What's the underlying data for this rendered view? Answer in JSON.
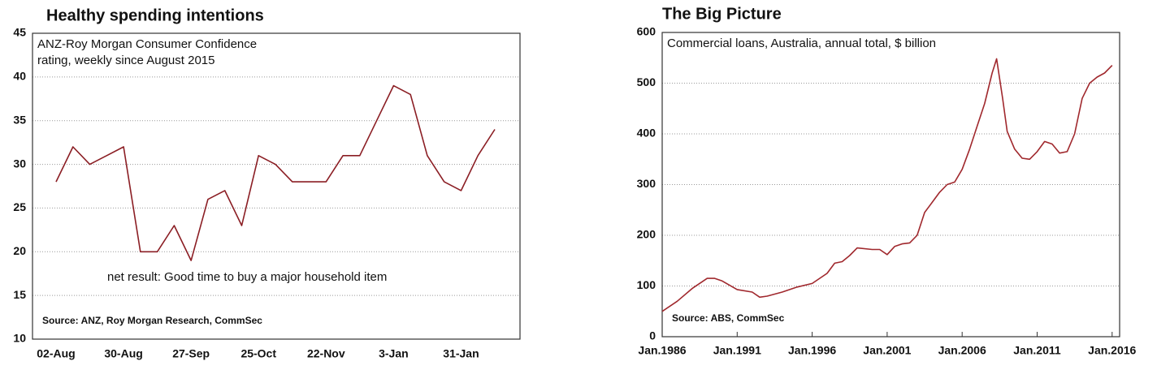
{
  "chart_data": [
    {
      "type": "line",
      "title": "Healthy spending intentions",
      "subtitle": [
        "ANZ-Roy Morgan Consumer Confidence",
        "rating, weekly since August 2015"
      ],
      "annotation": "net result: Good time to buy a major household item",
      "source": "Source: ANZ, Roy Morgan Research, CommSec",
      "categories": [
        "02-Aug",
        null,
        null,
        null,
        "30-Aug",
        null,
        null,
        null,
        "27-Sep",
        null,
        null,
        null,
        "25-Oct",
        null,
        null,
        null,
        "22-Nov",
        null,
        null,
        null,
        "3-Jan",
        null,
        null,
        null,
        "31-Jan",
        null,
        null
      ],
      "series": [
        {
          "color": "#8b1e24",
          "values": [
            28,
            32,
            30,
            31,
            32,
            20,
            20,
            23,
            19,
            26,
            27,
            23,
            31,
            30,
            28,
            28,
            28,
            31,
            31,
            35,
            39,
            38,
            31,
            28,
            27,
            31,
            34
          ]
        }
      ],
      "ylim": [
        10,
        45
      ],
      "yticks": [
        10,
        15,
        20,
        25,
        30,
        35,
        40,
        45
      ],
      "grid": true
    },
    {
      "type": "line",
      "title": "The Big Picture",
      "subtitle": [
        "Commercial loans, Australia, annual total, $ billion"
      ],
      "source": "Source: ABS, CommSec",
      "x": [
        1986,
        1987,
        1988,
        1989,
        1989.5,
        1990,
        1991,
        1992,
        1992.5,
        1993,
        1994,
        1995,
        1996,
        1997,
        1997.5,
        1998,
        1998.5,
        1999,
        2000,
        2000.5,
        2001,
        2001.5,
        2002,
        2002.5,
        2003,
        2003.5,
        2004,
        2004.5,
        2005,
        2005.5,
        2006,
        2006.5,
        2007,
        2007.5,
        2008,
        2008.3,
        2008.7,
        2009,
        2009.5,
        2010,
        2010.5,
        2011,
        2011.5,
        2012,
        2012.5,
        2013,
        2013.5,
        2014,
        2014.5,
        2015,
        2015.5,
        2016
      ],
      "series": [
        {
          "color": "#a0282d",
          "values": [
            50,
            70,
            95,
            115,
            115,
            110,
            93,
            88,
            78,
            80,
            88,
            98,
            105,
            125,
            145,
            148,
            160,
            175,
            172,
            172,
            162,
            178,
            183,
            185,
            200,
            245,
            265,
            285,
            300,
            305,
            330,
            370,
            415,
            460,
            520,
            548,
            470,
            405,
            370,
            352,
            350,
            365,
            385,
            380,
            362,
            365,
            400,
            470,
            500,
            512,
            520,
            535
          ]
        }
      ],
      "xlim": [
        1986,
        2016.5
      ],
      "xticks": [
        {
          "value": 1986,
          "label": "Jan.1986"
        },
        {
          "value": 1991,
          "label": "Jan.1991"
        },
        {
          "value": 1996,
          "label": "Jan.1996"
        },
        {
          "value": 2001,
          "label": "Jan.2001"
        },
        {
          "value": 2006,
          "label": "Jan.2006"
        },
        {
          "value": 2011,
          "label": "Jan.2011"
        },
        {
          "value": 2016,
          "label": "Jan.2016"
        }
      ],
      "ylim": [
        0,
        600
      ],
      "yticks": [
        0,
        100,
        200,
        300,
        400,
        500,
        600
      ],
      "grid": true
    }
  ]
}
